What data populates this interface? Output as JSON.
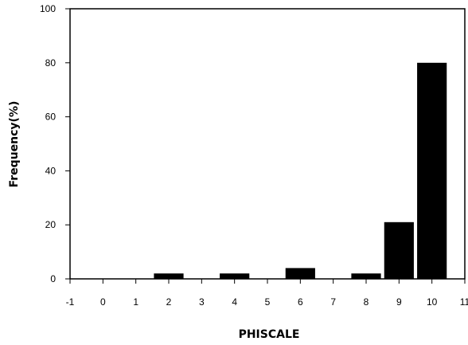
{
  "chart_data": {
    "type": "bar",
    "title": "",
    "xlabel": "PHISCALE",
    "ylabel": "Frequency(%)",
    "xlim": [
      -1,
      11
    ],
    "ylim": [
      0,
      100
    ],
    "x_ticks": [
      "-1",
      "0",
      "1",
      "2",
      "3",
      "4",
      "5",
      "6",
      "7",
      "8",
      "9",
      "10",
      "11"
    ],
    "y_ticks": [
      "0",
      "20",
      "40",
      "60",
      "80",
      "100"
    ],
    "bar_width": 0.9,
    "grid": false,
    "legend": "none",
    "bar_color": "#000000",
    "bars": [
      {
        "x": 2,
        "value": 2
      },
      {
        "x": 4,
        "value": 2
      },
      {
        "x": 6,
        "value": 4
      },
      {
        "x": 8,
        "value": 2
      },
      {
        "x": 9,
        "value": 21
      },
      {
        "x": 10,
        "value": 80
      }
    ]
  }
}
